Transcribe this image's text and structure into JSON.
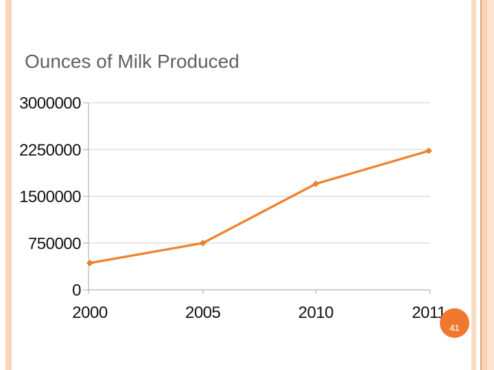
{
  "slide": {
    "title": "Ounces of Milk Produced",
    "page_number": "41"
  },
  "colors": {
    "title_gray": "#5A6167",
    "accent_orange": "#EE8331",
    "marker_orange": "#E0761F",
    "gridline": "#D9D9D9",
    "axis": "#B3B3B3",
    "label_black": "#111111",
    "page_badge": "#F0772E",
    "page_number_text": "#FCE9CC",
    "stripe_left": "#F6D7BE",
    "stripe_light": "#F8DCC4",
    "stripe_line": "#DDA67A",
    "stripe_medium": "#F8D2B4",
    "stripe_pale": "#FBE4D2"
  },
  "chart_data": {
    "type": "line",
    "title": "Ounces of Milk Produced",
    "categories": [
      "2000",
      "2005",
      "2010",
      "2011"
    ],
    "values": [
      430000,
      750000,
      1700000,
      2230000
    ],
    "xlabel": "",
    "ylabel": "",
    "ylim": [
      0,
      3000000
    ],
    "yticks": [
      0,
      750000,
      1500000,
      2250000,
      3000000
    ],
    "ytick_labels": [
      "0",
      "750000",
      "1500000",
      "2250000",
      "3000000"
    ],
    "grid": "horizontal",
    "legend": "none",
    "marker": "diamond"
  }
}
